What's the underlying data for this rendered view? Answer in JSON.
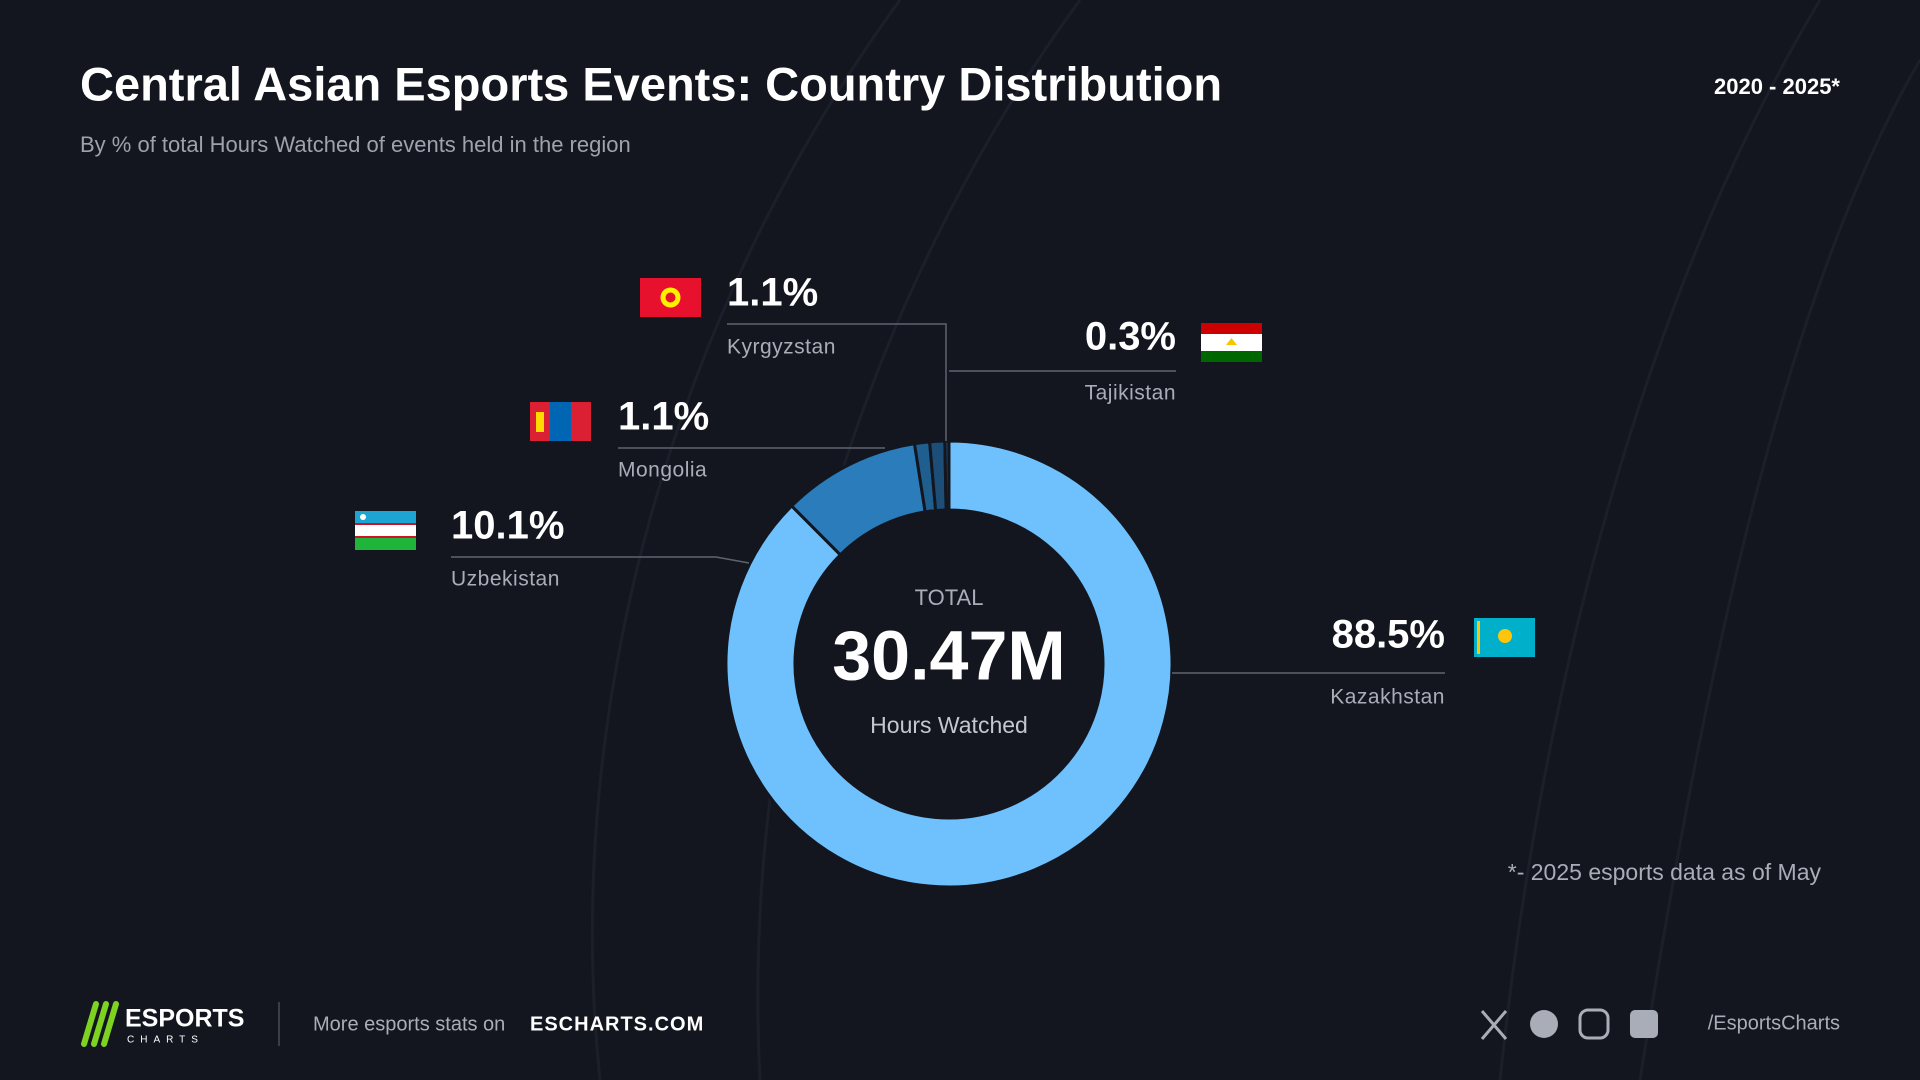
{
  "chart_data": {
    "type": "donut",
    "title": "Central Asian Esports Events: Country Distribution",
    "subtitle": "By % of total Hours Watched of events held in the region",
    "period": "2020 - 2025*",
    "categories": [
      "Kazakhstan",
      "Uzbekistan",
      "Mongolia",
      "Kyrgyzstan",
      "Tajikistan"
    ],
    "values": [
      88.5,
      10.1,
      1.1,
      1.1,
      0.3
    ],
    "value_labels": [
      "88.5%",
      "10.1%",
      "1.1%",
      "1.1%",
      "0.3%"
    ],
    "colors": [
      "#6ec1fd",
      "#2b7cba",
      "#1f5f8f",
      "#1c4e78",
      "#1a4468"
    ],
    "center": {
      "label": "TOTAL",
      "value": "30.47M",
      "unit": "Hours Watched"
    },
    "footnote": "*- 2025 esports data as of May"
  },
  "footer": {
    "logo_top": "ESPORTS",
    "logo_bottom": "CHARTS",
    "promo": "More esports stats on",
    "site": "ESCHARTS.COM",
    "handle": "/EsportsCharts"
  }
}
